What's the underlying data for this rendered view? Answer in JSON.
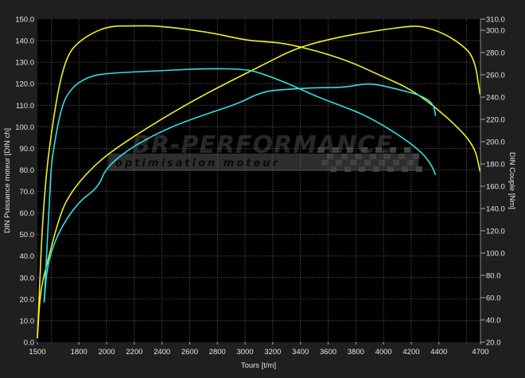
{
  "chart_data": {
    "type": "line",
    "title": "",
    "xlabel": "Tours [t/m]",
    "ylabel_left": "DIN Puissance moteur [DIN ch]",
    "ylabel_right": "DIN Couple [Nm]",
    "xlim": [
      1500,
      4700
    ],
    "ylim_left": [
      0,
      150
    ],
    "ylim_right": [
      20,
      310
    ],
    "x_ticks": [
      1500,
      1800,
      2000,
      2200,
      2400,
      2600,
      2800,
      3000,
      3200,
      3400,
      3600,
      3800,
      4000,
      4200,
      4400,
      4700
    ],
    "y_left_ticks": [
      "0.0",
      "10.0",
      "20.0",
      "30.0",
      "40.0",
      "50.0",
      "60.0",
      "70.0",
      "80.0",
      "90.0",
      "100.0",
      "110.0",
      "120.0",
      "130.0",
      "140.0",
      "150.0"
    ],
    "y_right_ticks": [
      "20.0",
      "40.0",
      "60.0",
      "80.0",
      "100.0",
      "120.0",
      "140.0",
      "160.0",
      "180.0",
      "200.0",
      "220.0",
      "240.0",
      "260.0",
      "280.0",
      "300.0",
      "310.0"
    ],
    "grid": true,
    "background": "#000000",
    "watermark": {
      "brand": "BR-PERFORMANCE",
      "tagline": "optimisation moteur"
    },
    "series": [
      {
        "axis": "left",
        "color": "#f2f01e",
        "points": [
          [
            1500,
            1.8
          ],
          [
            1520,
            23
          ],
          [
            1563,
            35
          ],
          [
            1666,
            60
          ],
          [
            1747,
            70
          ],
          [
            1879,
            80
          ],
          [
            2034,
            88.7
          ],
          [
            2378,
            103
          ],
          [
            2722,
            115.6
          ],
          [
            3125,
            128.6
          ],
          [
            3383,
            137
          ],
          [
            3699,
            142
          ],
          [
            3986,
            145
          ],
          [
            4187,
            146.7
          ],
          [
            4273,
            146.7
          ],
          [
            4416,
            144
          ],
          [
            4560,
            138.5
          ],
          [
            4657,
            132
          ],
          [
            4697,
            115
          ]
        ]
      },
      {
        "axis": "right",
        "color": "#f2f01e",
        "points": [
          [
            1500,
            24
          ],
          [
            1546,
            156
          ],
          [
            1632,
            236
          ],
          [
            1707,
            276
          ],
          [
            1804,
            291
          ],
          [
            1994,
            303.6
          ],
          [
            2189,
            304
          ],
          [
            2378,
            304
          ],
          [
            2722,
            298.6
          ],
          [
            3010,
            291
          ],
          [
            3124,
            290
          ],
          [
            3314,
            288
          ],
          [
            3699,
            275
          ],
          [
            3986,
            259
          ],
          [
            4215,
            246
          ],
          [
            4462,
            222
          ],
          [
            4657,
            197
          ],
          [
            4697,
            173
          ]
        ]
      },
      {
        "axis": "left",
        "color": "#2fe0e6",
        "points": [
          [
            1549,
            18.5
          ],
          [
            1569,
            35
          ],
          [
            1641,
            50
          ],
          [
            1787,
            64.6
          ],
          [
            1942,
            72
          ],
          [
            1994,
            81
          ],
          [
            2189,
            91
          ],
          [
            2453,
            99.7
          ],
          [
            2722,
            106
          ],
          [
            2952,
            110.8
          ],
          [
            3125,
            116.4
          ],
          [
            3314,
            117.5
          ],
          [
            3526,
            118.2
          ],
          [
            3699,
            118.2
          ],
          [
            3842,
            119.7
          ],
          [
            3928,
            120
          ],
          [
            4100,
            117.5
          ],
          [
            4273,
            114.5
          ],
          [
            4360,
            110.8
          ],
          [
            4376,
            105
          ]
        ]
      },
      {
        "axis": "right",
        "color": "#2fe0e6",
        "points": [
          [
            1549,
            55.7
          ],
          [
            1592,
            159
          ],
          [
            1603,
            184
          ],
          [
            1672,
            232
          ],
          [
            1747,
            248.6
          ],
          [
            1862,
            258
          ],
          [
            1994,
            261.4
          ],
          [
            2378,
            263.6
          ],
          [
            2722,
            265.7
          ],
          [
            3010,
            265
          ],
          [
            3125,
            261
          ],
          [
            3314,
            252
          ],
          [
            3526,
            240
          ],
          [
            3699,
            232
          ],
          [
            3871,
            223.6
          ],
          [
            4100,
            207
          ],
          [
            4273,
            191
          ],
          [
            4347,
            179
          ],
          [
            4376,
            170
          ]
        ]
      }
    ]
  }
}
